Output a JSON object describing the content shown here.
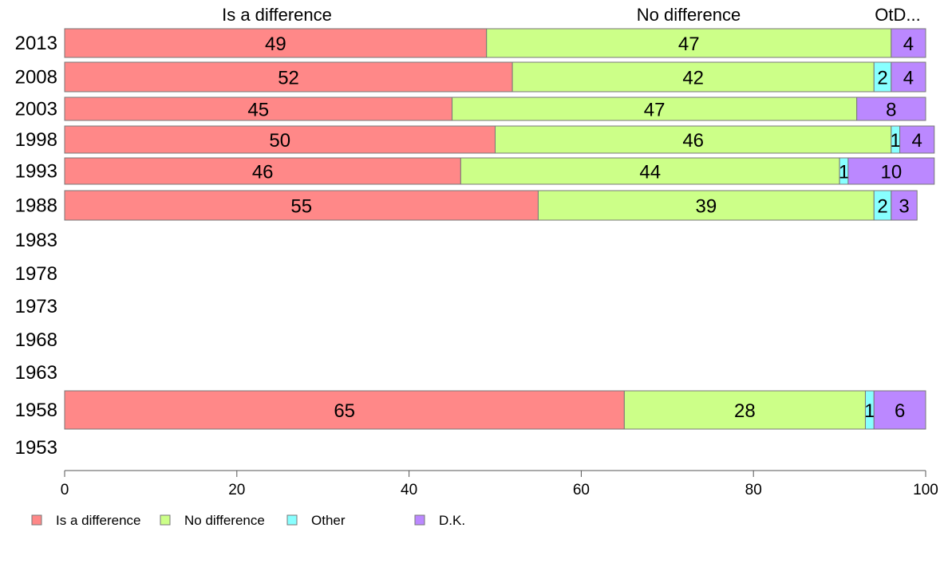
{
  "colors": {
    "Is a difference": "#ff8888",
    "No difference": "#ccff88",
    "Other": "#88ffff",
    "D.K.": "#bb88ff"
  },
  "header_labels": [
    "Is a difference",
    "No difference",
    "OtD..."
  ],
  "chart_data": {
    "type": "bar",
    "orientation": "horizontal",
    "stacked": true,
    "categories": [
      "2013",
      "2008",
      "2003",
      "1998",
      "1993",
      "1988",
      "1983",
      "1978",
      "1973",
      "1968",
      "1963",
      "1958",
      "1953"
    ],
    "series": [
      {
        "name": "Is a difference",
        "values": [
          49,
          52,
          45,
          50,
          46,
          55,
          null,
          null,
          null,
          null,
          null,
          65,
          null
        ]
      },
      {
        "name": "No difference",
        "values": [
          47,
          42,
          47,
          46,
          44,
          39,
          null,
          null,
          null,
          null,
          null,
          28,
          null
        ]
      },
      {
        "name": "Other",
        "values": [
          0,
          2,
          0,
          1,
          1,
          2,
          null,
          null,
          null,
          null,
          null,
          1,
          null
        ]
      },
      {
        "name": "D.K.",
        "values": [
          4,
          4,
          8,
          4,
          10,
          3,
          null,
          null,
          null,
          null,
          null,
          6,
          null
        ]
      }
    ],
    "xlim": [
      0,
      100
    ],
    "xticks": [
      "0",
      "20",
      "40",
      "60",
      "80",
      "100"
    ],
    "legend": [
      "Is a difference",
      "No difference",
      "Other",
      "D.K."
    ],
    "legend_position": "bottom"
  }
}
